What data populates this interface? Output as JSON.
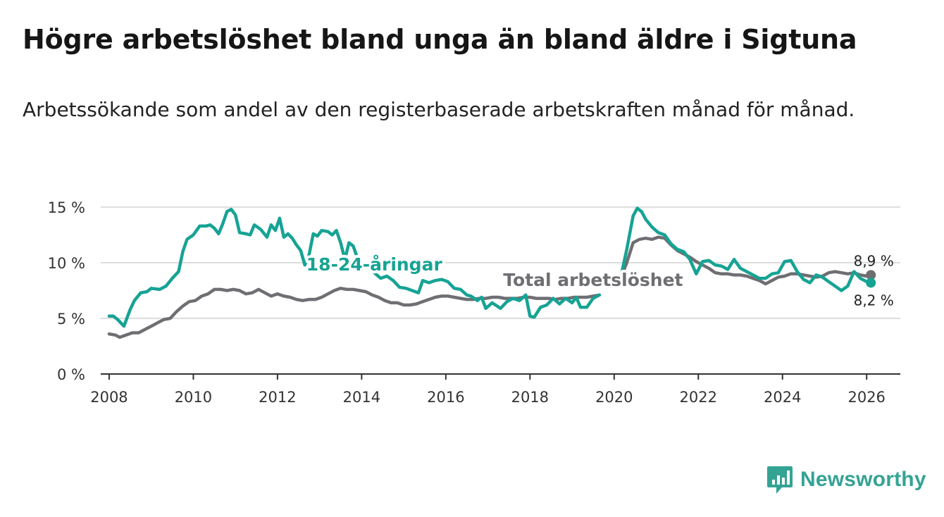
{
  "title": "Högre arbetslöshet bland unga än bland äldre i Sigtuna",
  "subtitle": "Arbetssökande som andel av den registerbaserade arbetskraften månad för månad.",
  "brand": {
    "name": "Newsworthy",
    "icon": "bar-chart-icon"
  },
  "colors": {
    "youth": "#16a394",
    "total": "#6f6f73",
    "grid": "#dddddd",
    "axis": "#333333",
    "brand": "#34a394"
  },
  "chart_data": {
    "type": "line",
    "title": "Högre arbetslöshet bland unga än bland äldre i Sigtuna",
    "xlabel": "",
    "ylabel": "",
    "xlim": [
      2007.8,
      2026.8
    ],
    "ylim": [
      0,
      15
    ],
    "grid": true,
    "x_ticks": [
      2008,
      2010,
      2012,
      2014,
      2016,
      2018,
      2020,
      2022,
      2024,
      2026
    ],
    "x_tick_labels": [
      "2008",
      "2010",
      "2012",
      "2014",
      "2016",
      "2018",
      "2020",
      "2022",
      "2024",
      "2026"
    ],
    "y_ticks": [
      0,
      5,
      10,
      15
    ],
    "y_tick_labels": [
      "0 %",
      "5 %",
      "10 %",
      "15 %"
    ],
    "series": [
      {
        "name": "18-24-åringar",
        "label": "18-24-åringar",
        "color": "#16a394",
        "end_label": "8,2 %",
        "points": [
          [
            2008.0,
            5.2
          ],
          [
            2008.1,
            5.2
          ],
          [
            2008.2,
            4.9
          ],
          [
            2008.35,
            4.3
          ],
          [
            2008.5,
            5.8
          ],
          [
            2008.6,
            6.6
          ],
          [
            2008.75,
            7.3
          ],
          [
            2008.9,
            7.4
          ],
          [
            2009.0,
            7.7
          ],
          [
            2009.2,
            7.6
          ],
          [
            2009.35,
            7.9
          ],
          [
            2009.5,
            8.6
          ],
          [
            2009.65,
            9.2
          ],
          [
            2009.75,
            11.0
          ],
          [
            2009.85,
            12.1
          ],
          [
            2010.0,
            12.5
          ],
          [
            2010.15,
            13.3
          ],
          [
            2010.3,
            13.3
          ],
          [
            2010.4,
            13.4
          ],
          [
            2010.5,
            13.1
          ],
          [
            2010.6,
            12.6
          ],
          [
            2010.7,
            13.5
          ],
          [
            2010.8,
            14.6
          ],
          [
            2010.9,
            14.8
          ],
          [
            2011.0,
            14.3
          ],
          [
            2011.1,
            12.7
          ],
          [
            2011.25,
            12.6
          ],
          [
            2011.35,
            12.5
          ],
          [
            2011.45,
            13.4
          ],
          [
            2011.6,
            13.0
          ],
          [
            2011.75,
            12.3
          ],
          [
            2011.85,
            13.4
          ],
          [
            2011.95,
            12.9
          ],
          [
            2012.05,
            14.0
          ],
          [
            2012.15,
            12.3
          ],
          [
            2012.25,
            12.6
          ],
          [
            2012.35,
            12.2
          ],
          [
            2012.45,
            11.6
          ],
          [
            2012.55,
            11.1
          ],
          [
            2012.65,
            9.8
          ],
          [
            2012.75,
            10.7
          ],
          [
            2012.85,
            12.6
          ],
          [
            2012.95,
            12.4
          ],
          [
            2013.05,
            12.9
          ],
          [
            2013.2,
            12.8
          ],
          [
            2013.3,
            12.5
          ],
          [
            2013.4,
            12.9
          ],
          [
            2013.5,
            11.8
          ],
          [
            2013.6,
            10.3
          ],
          [
            2013.7,
            11.8
          ],
          [
            2013.8,
            11.5
          ],
          [
            2013.9,
            10.4
          ],
          [
            2014.0,
            9.9
          ],
          [
            2014.15,
            9.6
          ],
          [
            2014.3,
            9.1
          ],
          [
            2014.45,
            8.6
          ],
          [
            2014.6,
            8.8
          ],
          [
            2014.75,
            8.4
          ],
          [
            2014.9,
            7.8
          ],
          [
            2015.05,
            7.7
          ],
          [
            2015.2,
            7.5
          ],
          [
            2015.35,
            7.3
          ],
          [
            2015.45,
            8.4
          ],
          [
            2015.6,
            8.2
          ],
          [
            2015.75,
            8.4
          ],
          [
            2015.9,
            8.5
          ],
          [
            2016.05,
            8.3
          ],
          [
            2016.2,
            7.7
          ],
          [
            2016.35,
            7.6
          ],
          [
            2016.5,
            7.1
          ],
          [
            2016.6,
            7.0
          ],
          [
            2016.75,
            6.6
          ],
          [
            2016.85,
            6.9
          ],
          [
            2016.95,
            5.9
          ],
          [
            2017.1,
            6.4
          ],
          [
            2017.3,
            5.9
          ],
          [
            2017.45,
            6.5
          ],
          [
            2017.6,
            6.8
          ],
          [
            2017.75,
            6.6
          ],
          [
            2017.9,
            7.1
          ],
          [
            2018.0,
            5.2
          ],
          [
            2018.1,
            5.1
          ],
          [
            2018.25,
            6.0
          ],
          [
            2018.4,
            6.2
          ],
          [
            2018.55,
            6.8
          ],
          [
            2018.7,
            6.3
          ],
          [
            2018.85,
            6.8
          ],
          [
            2019.0,
            6.4
          ],
          [
            2019.1,
            6.9
          ],
          [
            2019.2,
            6.0
          ],
          [
            2019.35,
            6.0
          ],
          [
            2019.5,
            6.8
          ],
          [
            2019.65,
            7.1
          ],
          [
            2020.15,
            8.6
          ],
          [
            2020.3,
            11.2
          ],
          [
            2020.45,
            14.2
          ],
          [
            2020.55,
            14.9
          ],
          [
            2020.65,
            14.6
          ],
          [
            2020.75,
            13.9
          ],
          [
            2020.9,
            13.2
          ],
          [
            2021.05,
            12.7
          ],
          [
            2021.2,
            12.5
          ],
          [
            2021.35,
            11.7
          ],
          [
            2021.5,
            11.2
          ],
          [
            2021.65,
            11.0
          ],
          [
            2021.8,
            10.3
          ],
          [
            2021.95,
            9.0
          ],
          [
            2022.1,
            10.1
          ],
          [
            2022.25,
            10.2
          ],
          [
            2022.4,
            9.8
          ],
          [
            2022.55,
            9.7
          ],
          [
            2022.7,
            9.4
          ],
          [
            2022.85,
            10.3
          ],
          [
            2023.0,
            9.5
          ],
          [
            2023.15,
            9.2
          ],
          [
            2023.3,
            8.9
          ],
          [
            2023.45,
            8.6
          ],
          [
            2023.6,
            8.6
          ],
          [
            2023.75,
            9.0
          ],
          [
            2023.9,
            9.1
          ],
          [
            2024.05,
            10.1
          ],
          [
            2024.2,
            10.2
          ],
          [
            2024.35,
            9.2
          ],
          [
            2024.5,
            8.5
          ],
          [
            2024.65,
            8.2
          ],
          [
            2024.8,
            8.9
          ],
          [
            2024.95,
            8.7
          ],
          [
            2025.1,
            8.3
          ],
          [
            2025.25,
            7.9
          ],
          [
            2025.4,
            7.5
          ],
          [
            2025.55,
            7.9
          ],
          [
            2025.7,
            9.2
          ],
          [
            2025.85,
            8.6
          ],
          [
            2026.0,
            8.3
          ],
          [
            2026.1,
            8.2
          ]
        ]
      },
      {
        "name": "Total arbetslöshet",
        "label": "Total arbetslöshet",
        "color": "#6f6f73",
        "end_label": "8,9 %",
        "points": [
          [
            2008.0,
            3.6
          ],
          [
            2008.15,
            3.5
          ],
          [
            2008.25,
            3.3
          ],
          [
            2008.4,
            3.5
          ],
          [
            2008.55,
            3.7
          ],
          [
            2008.7,
            3.7
          ],
          [
            2008.85,
            4.0
          ],
          [
            2009.0,
            4.3
          ],
          [
            2009.15,
            4.6
          ],
          [
            2009.3,
            4.9
          ],
          [
            2009.45,
            5.0
          ],
          [
            2009.6,
            5.6
          ],
          [
            2009.75,
            6.1
          ],
          [
            2009.9,
            6.5
          ],
          [
            2010.05,
            6.6
          ],
          [
            2010.2,
            7.0
          ],
          [
            2010.35,
            7.2
          ],
          [
            2010.5,
            7.6
          ],
          [
            2010.65,
            7.6
          ],
          [
            2010.8,
            7.5
          ],
          [
            2010.95,
            7.6
          ],
          [
            2011.1,
            7.5
          ],
          [
            2011.25,
            7.2
          ],
          [
            2011.4,
            7.3
          ],
          [
            2011.55,
            7.6
          ],
          [
            2011.7,
            7.3
          ],
          [
            2011.85,
            7.0
          ],
          [
            2012.0,
            7.2
          ],
          [
            2012.15,
            7.0
          ],
          [
            2012.3,
            6.9
          ],
          [
            2012.45,
            6.7
          ],
          [
            2012.6,
            6.6
          ],
          [
            2012.75,
            6.7
          ],
          [
            2012.9,
            6.7
          ],
          [
            2013.05,
            6.9
          ],
          [
            2013.2,
            7.2
          ],
          [
            2013.35,
            7.5
          ],
          [
            2013.5,
            7.7
          ],
          [
            2013.65,
            7.6
          ],
          [
            2013.8,
            7.6
          ],
          [
            2013.95,
            7.5
          ],
          [
            2014.1,
            7.4
          ],
          [
            2014.25,
            7.1
          ],
          [
            2014.4,
            6.9
          ],
          [
            2014.55,
            6.6
          ],
          [
            2014.7,
            6.4
          ],
          [
            2014.85,
            6.4
          ],
          [
            2015.0,
            6.2
          ],
          [
            2015.15,
            6.2
          ],
          [
            2015.3,
            6.3
          ],
          [
            2015.45,
            6.5
          ],
          [
            2015.6,
            6.7
          ],
          [
            2015.75,
            6.9
          ],
          [
            2015.9,
            7.0
          ],
          [
            2016.05,
            7.0
          ],
          [
            2016.2,
            6.9
          ],
          [
            2016.35,
            6.8
          ],
          [
            2016.5,
            6.7
          ],
          [
            2016.65,
            6.7
          ],
          [
            2016.8,
            6.8
          ],
          [
            2016.95,
            6.8
          ],
          [
            2017.1,
            6.9
          ],
          [
            2017.25,
            6.9
          ],
          [
            2017.4,
            6.8
          ],
          [
            2017.55,
            6.8
          ],
          [
            2017.7,
            6.8
          ],
          [
            2017.85,
            6.9
          ],
          [
            2018.0,
            6.9
          ],
          [
            2018.15,
            6.8
          ],
          [
            2018.3,
            6.8
          ],
          [
            2018.45,
            6.8
          ],
          [
            2018.6,
            6.7
          ],
          [
            2018.75,
            6.8
          ],
          [
            2018.9,
            6.8
          ],
          [
            2019.05,
            6.9
          ],
          [
            2019.2,
            6.9
          ],
          [
            2019.35,
            6.9
          ],
          [
            2019.5,
            7.0
          ],
          [
            2019.65,
            7.1
          ],
          [
            2020.15,
            8.6
          ],
          [
            2020.3,
            10.0
          ],
          [
            2020.45,
            11.8
          ],
          [
            2020.6,
            12.1
          ],
          [
            2020.75,
            12.2
          ],
          [
            2020.9,
            12.1
          ],
          [
            2021.05,
            12.3
          ],
          [
            2021.2,
            12.2
          ],
          [
            2021.35,
            11.6
          ],
          [
            2021.5,
            11.1
          ],
          [
            2021.65,
            10.8
          ],
          [
            2021.8,
            10.5
          ],
          [
            2021.95,
            10.1
          ],
          [
            2022.1,
            9.8
          ],
          [
            2022.25,
            9.5
          ],
          [
            2022.4,
            9.1
          ],
          [
            2022.55,
            9.0
          ],
          [
            2022.7,
            9.0
          ],
          [
            2022.85,
            8.9
          ],
          [
            2023.0,
            8.9
          ],
          [
            2023.15,
            8.8
          ],
          [
            2023.3,
            8.6
          ],
          [
            2023.45,
            8.4
          ],
          [
            2023.6,
            8.1
          ],
          [
            2023.75,
            8.4
          ],
          [
            2023.9,
            8.7
          ],
          [
            2024.05,
            8.8
          ],
          [
            2024.2,
            9.0
          ],
          [
            2024.35,
            9.0
          ],
          [
            2024.5,
            8.9
          ],
          [
            2024.65,
            8.8
          ],
          [
            2024.8,
            8.7
          ],
          [
            2024.95,
            8.8
          ],
          [
            2025.1,
            9.1
          ],
          [
            2025.25,
            9.2
          ],
          [
            2025.4,
            9.1
          ],
          [
            2025.55,
            9.0
          ],
          [
            2025.7,
            9.1
          ],
          [
            2025.85,
            8.9
          ],
          [
            2026.0,
            8.8
          ],
          [
            2026.1,
            8.9
          ]
        ]
      }
    ],
    "annotations": [
      {
        "text": "18-24-åringar",
        "series": "18-24-åringar",
        "x": 2014.3,
        "y": 9.3
      },
      {
        "text": "Total arbetslöshet",
        "series": "Total arbetslöshet",
        "x": 2019.5,
        "y": 7.9
      }
    ]
  }
}
